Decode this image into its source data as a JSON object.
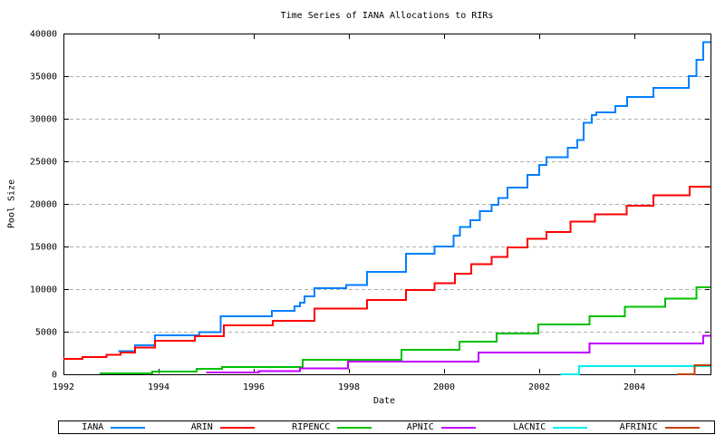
{
  "title": "Time Series of IANA Allocations to RIRs",
  "axes": {
    "x_label": "Date",
    "y_label": "Pool Size",
    "x_ticks": [
      1992,
      1994,
      1996,
      1998,
      2000,
      2002,
      2004
    ],
    "y_ticks": [
      0,
      5000,
      10000,
      15000,
      20000,
      25000,
      30000,
      35000,
      40000
    ],
    "x_range": [
      1992,
      2005.6
    ],
    "y_range": [
      0,
      40000
    ]
  },
  "colors": {
    "grid": "#b0b0b0",
    "border": "#000000",
    "background": "#ffffff"
  },
  "chart_data": {
    "type": "line",
    "style": "steps",
    "title": "Time Series of IANA Allocations to RIRs",
    "xlabel": "Date",
    "ylabel": "Pool Size",
    "xlim": [
      1992,
      2005.6
    ],
    "ylim": [
      0,
      40000
    ],
    "grid": "horizontal dashed gridlines at each y tick",
    "legend_position": "bottom outside, single boxed row",
    "series": [
      {
        "name": "IANA",
        "color": "#0080ff",
        "points": [
          [
            1993.15,
            2700
          ],
          [
            1993.5,
            3400
          ],
          [
            1993.92,
            4600
          ],
          [
            1994.86,
            4950
          ],
          [
            1995.3,
            6800
          ],
          [
            1996.38,
            7450
          ],
          [
            1996.86,
            7980
          ],
          [
            1996.97,
            8400
          ],
          [
            1997.07,
            9150
          ],
          [
            1997.28,
            10100
          ],
          [
            1997.94,
            10500
          ],
          [
            1998.38,
            12000
          ],
          [
            1999.2,
            14150
          ],
          [
            1999.8,
            15000
          ],
          [
            2000.2,
            16300
          ],
          [
            2000.33,
            17300
          ],
          [
            2000.55,
            18100
          ],
          [
            2000.75,
            19150
          ],
          [
            2001.0,
            19900
          ],
          [
            2001.14,
            20700
          ],
          [
            2001.33,
            21900
          ],
          [
            2001.75,
            23400
          ],
          [
            2002.0,
            24600
          ],
          [
            2002.15,
            25500
          ],
          [
            2002.6,
            26600
          ],
          [
            2002.8,
            27500
          ],
          [
            2002.93,
            29500
          ],
          [
            2003.1,
            30400
          ],
          [
            2003.2,
            30750
          ],
          [
            2003.6,
            31500
          ],
          [
            2003.85,
            32550
          ],
          [
            2004.4,
            33600
          ],
          [
            2005.14,
            35000
          ],
          [
            2005.3,
            36900
          ],
          [
            2005.45,
            39000
          ]
        ]
      },
      {
        "name": "ARIN",
        "color": "#ff0000",
        "points": [
          [
            1992.0,
            1800
          ],
          [
            1992.4,
            2000
          ],
          [
            1992.9,
            2300
          ],
          [
            1993.2,
            2550
          ],
          [
            1993.5,
            3150
          ],
          [
            1993.92,
            3950
          ],
          [
            1994.76,
            4450
          ],
          [
            1995.37,
            5750
          ],
          [
            1996.4,
            6270
          ],
          [
            1997.28,
            7700
          ],
          [
            1998.38,
            8700
          ],
          [
            1999.2,
            9900
          ],
          [
            1999.8,
            10700
          ],
          [
            2000.23,
            11800
          ],
          [
            2000.57,
            12900
          ],
          [
            2001.0,
            13800
          ],
          [
            2001.33,
            14900
          ],
          [
            2001.75,
            15900
          ],
          [
            2002.15,
            16700
          ],
          [
            2002.66,
            17900
          ],
          [
            2003.17,
            18800
          ],
          [
            2003.84,
            19800
          ],
          [
            2004.4,
            21000
          ],
          [
            2005.16,
            22000
          ]
        ]
      },
      {
        "name": "RIPENCC",
        "color": "#00c000",
        "points": [
          [
            1992.76,
            120
          ],
          [
            1993.87,
            320
          ],
          [
            1994.8,
            640
          ],
          [
            1995.33,
            850
          ],
          [
            1997.03,
            1700
          ],
          [
            1999.1,
            2870
          ],
          [
            2000.32,
            3830
          ],
          [
            2001.1,
            4790
          ],
          [
            2001.98,
            5850
          ],
          [
            2003.06,
            6800
          ],
          [
            2003.8,
            7950
          ],
          [
            2004.65,
            8900
          ],
          [
            2005.3,
            10200
          ]
        ]
      },
      {
        "name": "APNIC",
        "color": "#c000ff",
        "points": [
          [
            1995.0,
            200
          ],
          [
            1996.1,
            350
          ],
          [
            1996.97,
            700
          ],
          [
            1997.98,
            1480
          ],
          [
            2000.72,
            2550
          ],
          [
            2003.06,
            3600
          ],
          [
            2005.45,
            4500
          ]
        ]
      },
      {
        "name": "LACNIC",
        "color": "#00eeee",
        "points": [
          [
            2002.45,
            0
          ],
          [
            2002.84,
            950
          ]
        ]
      },
      {
        "name": "AFRINIC",
        "color": "#c04000",
        "points": [
          [
            2004.9,
            0
          ],
          [
            2005.27,
            1050
          ]
        ]
      }
    ]
  },
  "legend": {
    "items": [
      {
        "label": "IANA",
        "color": "#0080ff"
      },
      {
        "label": "ARIN",
        "color": "#ff0000"
      },
      {
        "label": "RIPENCC",
        "color": "#00c000"
      },
      {
        "label": "APNIC",
        "color": "#c000ff"
      },
      {
        "label": "LACNIC",
        "color": "#00eeee"
      },
      {
        "label": "AFRINIC",
        "color": "#c04000"
      }
    ]
  }
}
